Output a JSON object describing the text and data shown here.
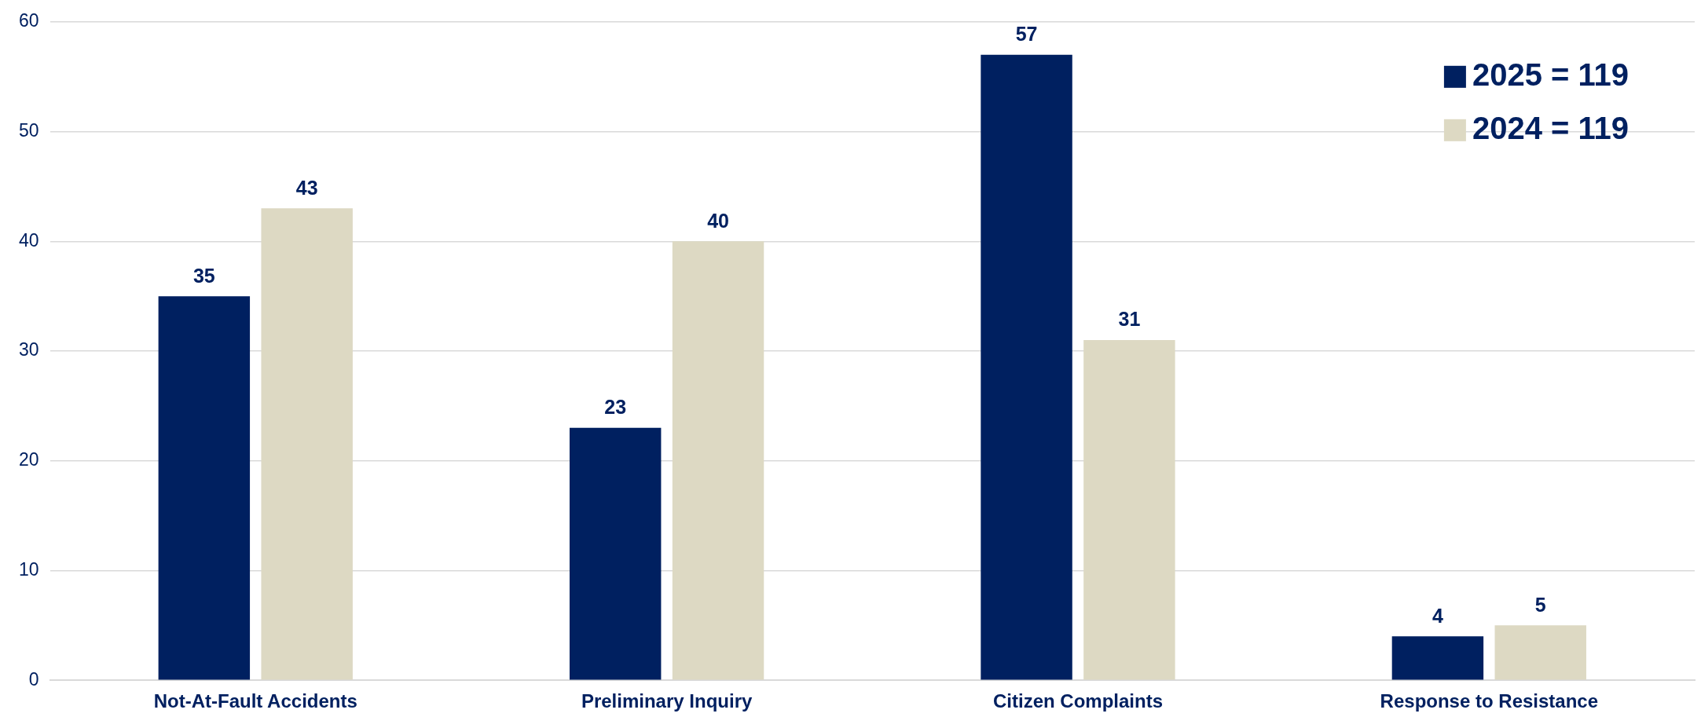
{
  "chart_data": {
    "type": "bar",
    "categories": [
      "Not-At-Fault Accidents",
      "Preliminary Inquiry",
      "Citizen Complaints",
      "Response to Resistance"
    ],
    "series": [
      {
        "name": "2025 = 119",
        "color": "#002060",
        "values": [
          35,
          23,
          57,
          4
        ]
      },
      {
        "name": "2024 = 119",
        "color": "#ddd9c3",
        "values": [
          43,
          40,
          31,
          5
        ]
      }
    ],
    "ylim": [
      0,
      60
    ],
    "yticks": [
      0,
      10,
      20,
      30,
      40,
      50,
      60
    ],
    "grid": "y",
    "legend": "top right",
    "data_labels": true
  }
}
